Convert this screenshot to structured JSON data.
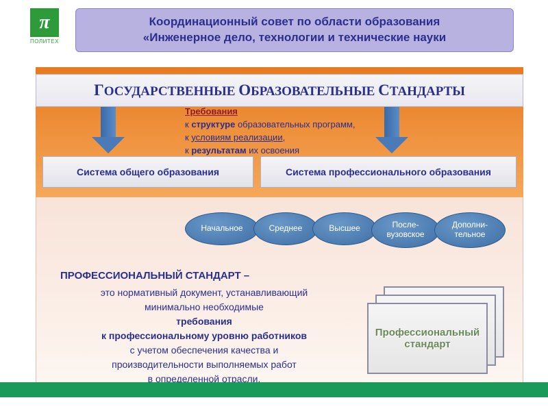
{
  "header": {
    "logo_symbol": "π",
    "logo_text": "ПОЛИТЕХ",
    "title_line1": "Координационный совет по области образования",
    "title_line2": "«Инженерное дело, технологии и технические науки",
    "banner_bg": "#b7b2e0",
    "banner_text_color": "#2a2e8f",
    "logo_bg": "#2e9b3a"
  },
  "diagram": {
    "orange_bg_top": "#e87a1f",
    "orange_bg_bottom": "#f5a85a",
    "pink_bg_top": "#f8e3d8",
    "pink_bg_bottom": "#fdf6f1",
    "top_bar": {
      "text_parts": [
        "Г",
        "ОСУДАРСТВЕННЫЕ ",
        "О",
        "БРАЗОВАТЕЛЬНЫЕ ",
        "С",
        "ТАНДАРТЫ"
      ],
      "text_color": "#2a2e8f",
      "bg": "#eeeef3"
    },
    "requirements": {
      "title": "Требования",
      "title_color": "#8f1a2e",
      "lines": [
        {
          "prefix": "к ",
          "bold": "структуре",
          "rest": " образовательных программ,"
        },
        {
          "prefix": "к ",
          "uline": "условиям реализации",
          "rest": ","
        },
        {
          "prefix": "к ",
          "bold": "результатам",
          "rest": " их освоения"
        }
      ],
      "text_color": "#2a2e8f"
    },
    "arrow_color": "#4a7ab8",
    "system_boxes": {
      "left": "Система общего образования",
      "right": "Система профессионального образования",
      "text_color": "#2a2e8f",
      "bg": "#ececf2"
    },
    "ovals": {
      "fill": "#4a7ab8",
      "text_color": "#ffffff",
      "items": [
        "Начальное",
        "Среднее",
        "Высшее",
        "После-\nвузовское",
        "Дополни-\nтельное"
      ]
    },
    "definition": {
      "title": "ПРОФЕССИОНАЛЬНЫЙ СТАНДАРТ –",
      "l1": "это нормативный документ, устанавливающий",
      "l2": "минимально необходимые",
      "l3_bold": "требования",
      "l4_bold": "к профессиональному уровню работников",
      "l5": "с учетом обеспечения качества и",
      "l6": "производительности выполняемых работ",
      "l7": "в определенной отрасли.",
      "text_color": "#2a2e8f"
    },
    "card_stack": {
      "label_line1": "Профессиональный",
      "label_line2": "стандарт",
      "label_color": "#6a8a5a",
      "card_bg": "#ededed",
      "card_border": "#8a8aa0"
    }
  },
  "footer_bar_color": "#1a9a5a"
}
